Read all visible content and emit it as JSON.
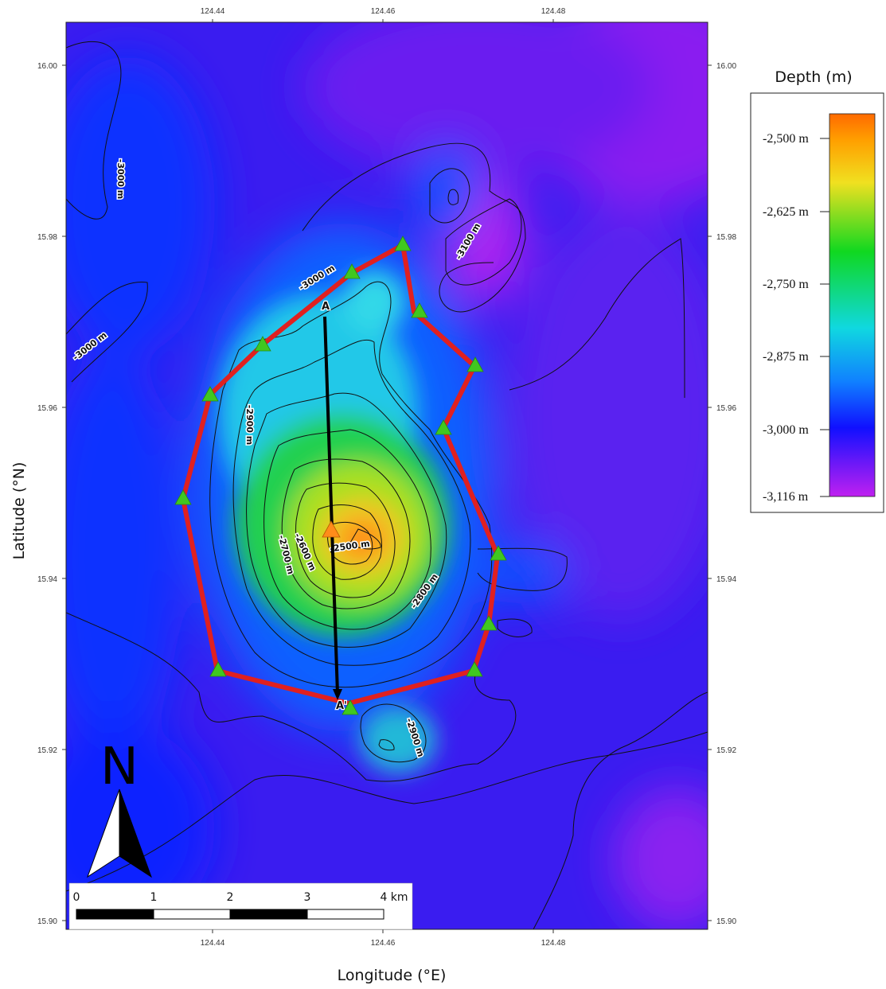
{
  "map": {
    "x_axis": {
      "title": "Longitude (°E)",
      "ticks": [
        "124.44",
        "124.46",
        "124.48"
      ]
    },
    "y_axis": {
      "title": "Latitude (°N)",
      "ticks": [
        "16.00",
        "15.98",
        "15.96",
        "15.94",
        "15.92",
        "15.90"
      ]
    },
    "legend": {
      "title": "Depth (m)",
      "ticks": [
        "-2,500 m",
        "-2,625 m",
        "-2,750 m",
        "-2,875 m",
        "-3,000 m",
        "-3,116 m"
      ],
      "colors": [
        "#ff6a00",
        "#f0e020",
        "#10d820",
        "#10d8e0",
        "#1010ff",
        "#c020f0"
      ]
    },
    "contour_labels": [
      "-3000 m",
      "-3000 m",
      "-3000 m",
      "-3100 m",
      "-2900 m",
      "-2700 m",
      "-2600 m",
      "-2500 m",
      "-2800 m",
      "-2900 m"
    ],
    "profile": {
      "start_label": "A",
      "end_label": "A'"
    },
    "scale_bar": {
      "labels": [
        "0",
        "1",
        "2",
        "3",
        "4 km"
      ]
    },
    "north_arrow": {
      "letter": "N"
    },
    "colors": {
      "survey_outline": "#e02020",
      "station_marker": "#40c820",
      "summit_marker": "#ff8c1a",
      "profile_line": "#000000"
    }
  }
}
